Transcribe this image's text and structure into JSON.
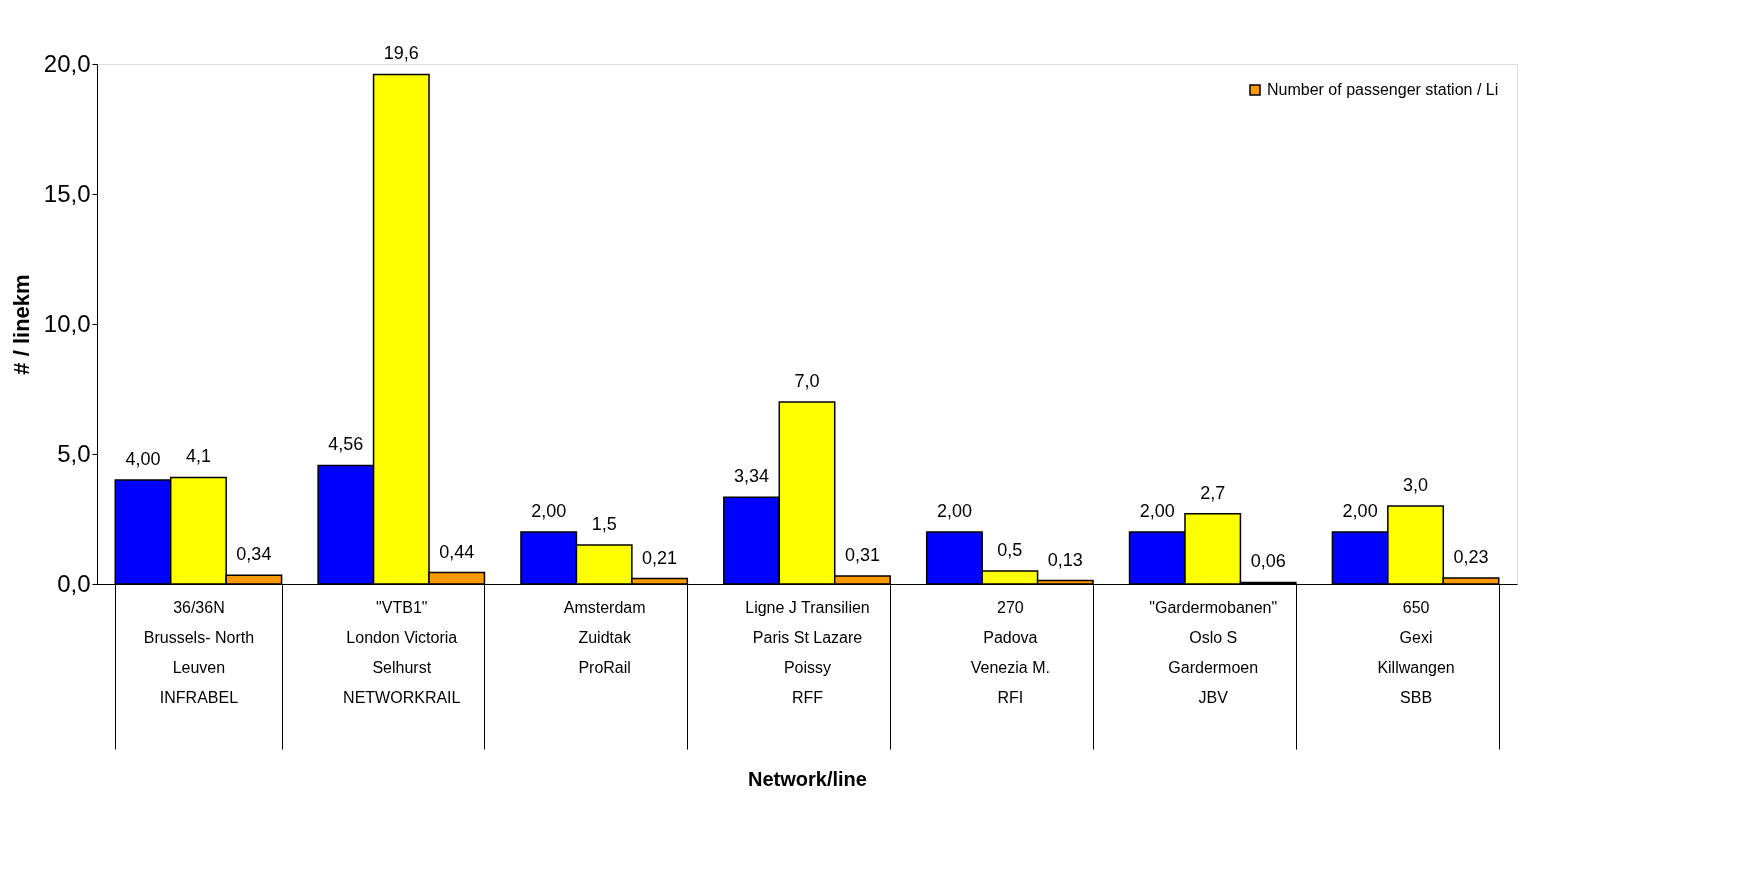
{
  "chart_data": {
    "type": "bar",
    "xlabel": "Network/line",
    "ylabel": "# / linekm",
    "categories": [
      "36/36N\nBrussels- North\nLeuven\n\nINFRABEL",
      "\"VTB1\"\nLondon Victoria\nSelhurst\n\nNETWORKRAIL",
      "Amsterdam\nZuidtak\n\n\nProRail",
      "Ligne J Transilien\nParis St Lazare\nPoissy\n\nRFF",
      "270\nPadova\nVenezia M.\n\nRFI",
      "\"Gardermobanen\"\nOslo S\nGardermoen\n\nJBV",
      "650\nGexi\nKillwangen\n\nSBB"
    ],
    "series": [
      {
        "color": "#0000ff",
        "values": [
          4.0,
          4.56,
          2.0,
          3.34,
          2.0,
          2.0,
          2.0
        ],
        "value_labels": [
          "4,00",
          "4,56",
          "2,00",
          "3,34",
          "2,00",
          "2,00",
          "2,00"
        ]
      },
      {
        "color": "#ffff00",
        "values": [
          4.1,
          19.6,
          1.5,
          7.0,
          0.5,
          2.7,
          3.0
        ],
        "value_labels": [
          "4,1",
          "19,6",
          "1,5",
          "7,0",
          "0,5",
          "2,7",
          "3,0"
        ]
      },
      {
        "name": "Number of passenger station / Li",
        "color": "#ff9900",
        "values": [
          0.34,
          0.44,
          0.21,
          0.31,
          0.13,
          0.06,
          0.23
        ],
        "value_labels": [
          "0,34",
          "0,44",
          "0,21",
          "0,31",
          "0,13",
          "0,06",
          "0,23"
        ]
      }
    ],
    "ylim": [
      0,
      20
    ],
    "yticks": [
      {
        "value": 0,
        "label": "0,0"
      },
      {
        "value": 5,
        "label": "5,0"
      },
      {
        "value": 10,
        "label": "10,0"
      },
      {
        "value": 15,
        "label": "15,0"
      },
      {
        "value": 20,
        "label": "20,0"
      }
    ],
    "grid": false,
    "legend": "top right"
  }
}
